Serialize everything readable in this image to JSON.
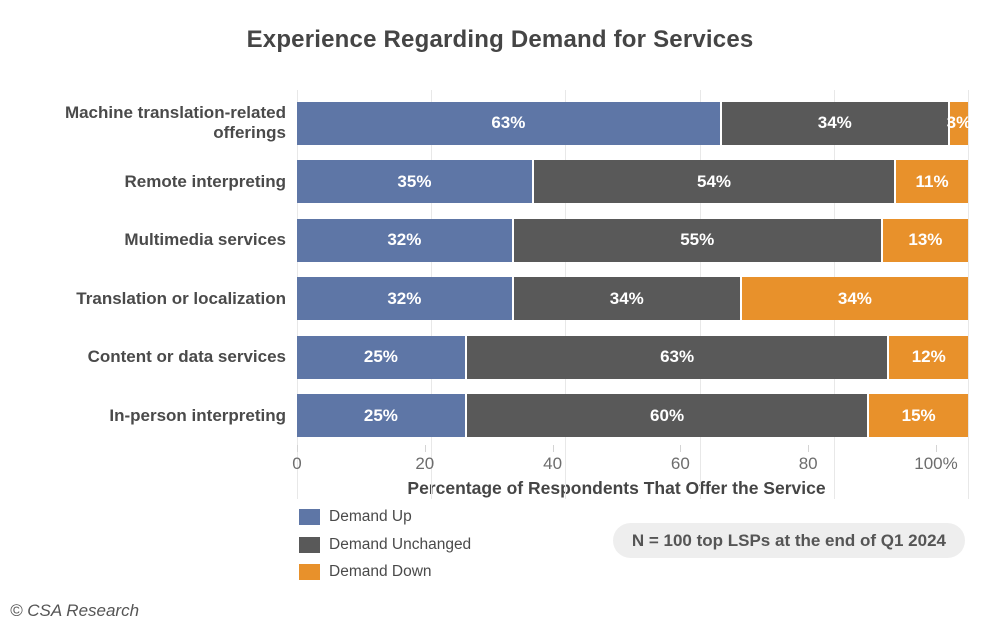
{
  "title": "Experience Regarding Demand for Services",
  "chart_data": {
    "type": "bar",
    "orientation": "horizontal",
    "stacked": true,
    "title": "Experience Regarding Demand for Services",
    "categories": [
      "Machine translation-related offerings",
      "Remote interpreting",
      "Multimedia services",
      "Translation or localization",
      "Content or data services",
      "In-person interpreting"
    ],
    "series": [
      {
        "name": "Demand Up",
        "color": "#5E76A6",
        "values": [
          63,
          35,
          32,
          32,
          25,
          25
        ]
      },
      {
        "name": "Demand Unchanged",
        "color": "#595959",
        "values": [
          34,
          54,
          55,
          34,
          63,
          60
        ]
      },
      {
        "name": "Demand Down",
        "color": "#E8912B",
        "values": [
          3,
          11,
          13,
          34,
          12,
          15
        ]
      }
    ],
    "xlabel": "Percentage of Respondents That Offer the Service",
    "xlim": [
      0,
      100
    ],
    "x_ticks": [
      {
        "value": 0,
        "label": "0"
      },
      {
        "value": 20,
        "label": "20"
      },
      {
        "value": 40,
        "label": "40"
      },
      {
        "value": 60,
        "label": "60"
      },
      {
        "value": 80,
        "label": "80"
      },
      {
        "value": 100,
        "label": "100%"
      }
    ],
    "grid": true,
    "legend_position": "bottom-left",
    "value_suffix": "%"
  },
  "legend": {
    "items": [
      {
        "label": "Demand Up",
        "color": "#5E76A6"
      },
      {
        "label": "Demand Unchanged",
        "color": "#595959"
      },
      {
        "label": "Demand Down",
        "color": "#E8912B"
      }
    ]
  },
  "note": "N = 100 top LSPs at the end of Q1 2024",
  "footer": "© CSA Research",
  "colors": {
    "background": "#FFFFFF",
    "title_text": "#454545",
    "category_text": "#4A4A4A",
    "tick_text": "#6D6D6D",
    "gridline": "#E8E8E8",
    "segment_divider": "#FFFFFF",
    "note_background": "#EEEEEE",
    "note_text": "#555555",
    "bar_value_text": "#FFFFFF"
  }
}
